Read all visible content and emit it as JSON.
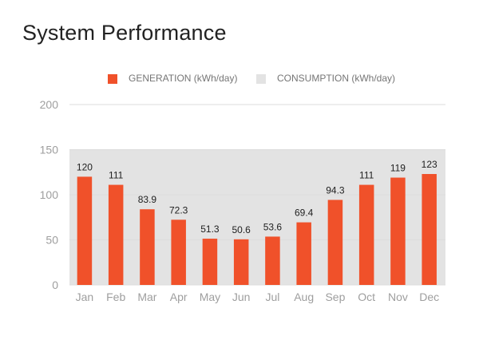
{
  "chart_data": {
    "type": "bar",
    "title": "System Performance",
    "categories": [
      "Jan",
      "Feb",
      "Mar",
      "Apr",
      "May",
      "Jun",
      "Jul",
      "Aug",
      "Sep",
      "Oct",
      "Nov",
      "Dec"
    ],
    "series": [
      {
        "name": "GENERATION (kWh/day)",
        "color": "#f0512a",
        "values": [
          120,
          111,
          83.9,
          72.3,
          51.3,
          50.6,
          53.6,
          69.4,
          94.3,
          111,
          119,
          123
        ],
        "labels": [
          "120",
          "111",
          "83.9",
          "72.3",
          "51.3",
          "50.6",
          "53.6",
          "69.4",
          "94.3",
          "111",
          "119",
          "123"
        ]
      },
      {
        "name": "CONSUMPTION (kWh/day)",
        "color": "#e3e3e3",
        "type": "area",
        "value": 150
      }
    ],
    "ylim": [
      0,
      200
    ],
    "yticks": [
      "0",
      "50",
      "100",
      "150",
      "200"
    ],
    "grid": true,
    "legend_position": "top-center"
  }
}
